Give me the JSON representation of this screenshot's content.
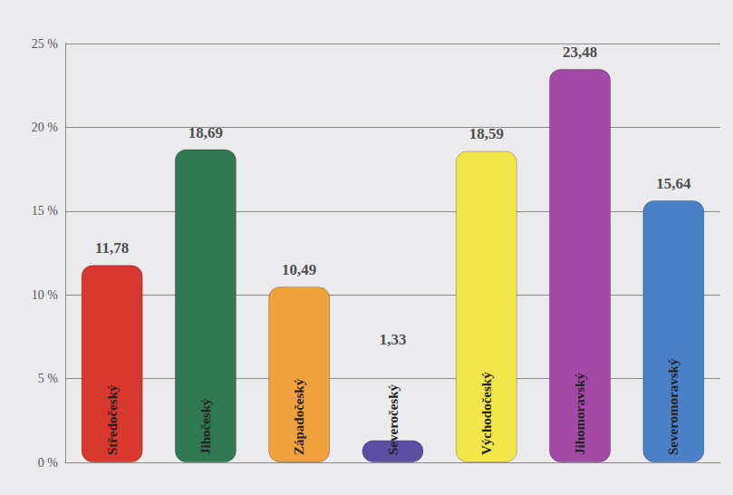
{
  "chart_data": {
    "type": "bar",
    "categories": [
      "Středočeský",
      "Jihočeský",
      "Západočeský",
      "Severočeský",
      "Východočeský",
      "Jihomoravský",
      "Severomoravský"
    ],
    "values": [
      11.78,
      18.69,
      10.49,
      1.33,
      18.59,
      23.48,
      15.64
    ],
    "value_labels": [
      "11,78",
      "18,69",
      "10,49",
      "1,33",
      "18,59",
      "23,48",
      "15,64"
    ],
    "colors": [
      "#d9382f",
      "#2f7a52",
      "#f0a23e",
      "#5b4ea3",
      "#f3e64a",
      "#a24aa6",
      "#4a80c8"
    ],
    "ylim": [
      0,
      25
    ],
    "yticks": [
      {
        "value": 0,
        "label": "0 %"
      },
      {
        "value": 5,
        "label": "5 %"
      },
      {
        "value": 10,
        "label": "10 %"
      },
      {
        "value": 15,
        "label": "15 %"
      },
      {
        "value": 20,
        "label": "20 %"
      },
      {
        "value": 25,
        "label": "25 %"
      }
    ],
    "grid": true,
    "data_labels": true
  }
}
